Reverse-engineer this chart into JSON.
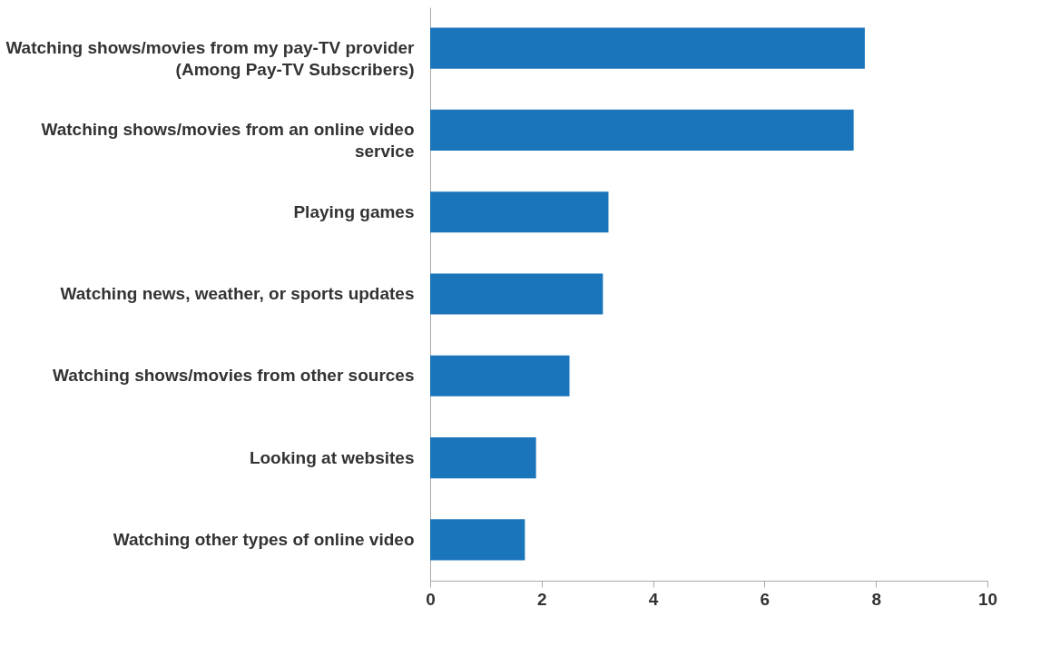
{
  "chart_data": {
    "type": "bar",
    "orientation": "horizontal",
    "categories": [
      "Watching shows/movies from my pay-TV provider (Among Pay-TV Subscribers)",
      "Watching shows/movies from an online video service",
      "Playing games",
      "Watching news, weather, or sports updates",
      "Watching shows/movies from other sources",
      "Looking at websites",
      "Watching other types of online video"
    ],
    "values": [
      7.8,
      7.6,
      3.2,
      3.1,
      2.5,
      1.9,
      1.7
    ],
    "color": "#1b75bb",
    "xlim": [
      0,
      10
    ],
    "xticks": [
      0,
      2,
      4,
      6,
      8,
      10
    ]
  }
}
